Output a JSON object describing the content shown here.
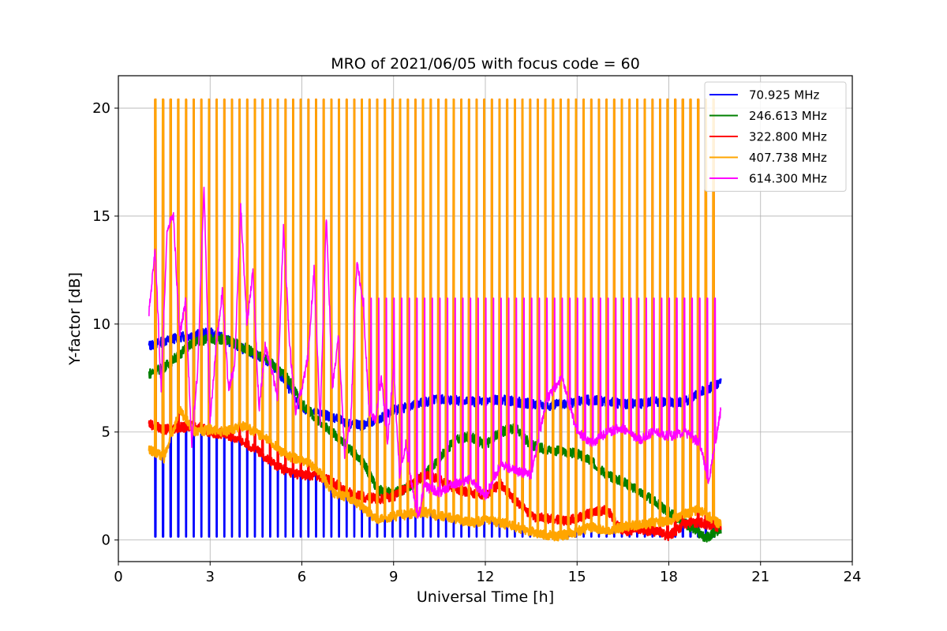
{
  "chart_data": {
    "type": "line",
    "title": "MRO of 2021/06/05 with focus code = 60",
    "xlabel": "Universal Time [h]",
    "ylabel": "Y-factor [dB]",
    "xlim": [
      0,
      24
    ],
    "ylim": [
      -1,
      21.5
    ],
    "xticks": [
      0,
      3,
      6,
      9,
      12,
      15,
      18,
      21,
      24
    ],
    "xtick_labels": [
      "0",
      "3",
      "6",
      "9",
      "12",
      "15",
      "18",
      "21",
      "24"
    ],
    "yticks": [
      0,
      5,
      10,
      15,
      20
    ],
    "ytick_labels": [
      "0",
      "5",
      "10",
      "15",
      "20"
    ],
    "grid": true,
    "legend_position": "top-right",
    "series": [
      {
        "name": " 70.925 MHz",
        "color": "#0000ff",
        "x": [
          1.0,
          1.5,
          2.0,
          2.5,
          3.0,
          3.5,
          4.0,
          4.5,
          5.0,
          5.5,
          6.0,
          6.5,
          7.0,
          7.5,
          8.0,
          8.5,
          9.0,
          9.5,
          10.0,
          10.5,
          11.0,
          11.5,
          12.0,
          12.5,
          13.0,
          13.5,
          14.0,
          14.5,
          15.0,
          15.5,
          16.0,
          16.5,
          17.0,
          17.5,
          18.0,
          18.5,
          19.0,
          19.7
        ],
        "values": [
          9.0,
          9.2,
          9.4,
          9.5,
          9.6,
          9.3,
          8.9,
          8.6,
          8.2,
          7.2,
          6.1,
          5.9,
          5.7,
          5.4,
          5.3,
          5.6,
          6.0,
          6.2,
          6.4,
          6.5,
          6.5,
          6.4,
          6.4,
          6.5,
          6.4,
          6.3,
          6.2,
          6.3,
          6.4,
          6.5,
          6.4,
          6.3,
          6.3,
          6.4,
          6.4,
          6.4,
          6.8,
          7.3
        ],
        "pulse_low": 0.15,
        "pulse_from": 1.2,
        "pulse_to": 19.6
      },
      {
        "name": "246.613 MHz",
        "color": "#008000",
        "x": [
          1.0,
          1.5,
          2.0,
          2.5,
          3.0,
          3.5,
          4.0,
          4.5,
          5.0,
          5.5,
          6.0,
          6.5,
          7.0,
          7.5,
          8.0,
          8.5,
          9.0,
          9.5,
          10.0,
          10.5,
          11.0,
          11.5,
          12.0,
          12.5,
          13.0,
          13.5,
          14.0,
          14.5,
          15.0,
          15.5,
          16.0,
          16.5,
          17.0,
          17.5,
          18.0,
          18.5,
          19.0,
          19.2,
          19.7
        ],
        "values": [
          7.7,
          8.0,
          8.6,
          9.2,
          9.3,
          9.3,
          9.0,
          8.6,
          8.2,
          7.6,
          6.3,
          5.6,
          5.0,
          4.3,
          3.6,
          2.3,
          2.2,
          2.4,
          3.0,
          3.8,
          4.6,
          4.8,
          4.4,
          5.0,
          5.2,
          4.4,
          4.2,
          4.1,
          4.0,
          3.6,
          3.0,
          2.7,
          2.3,
          1.8,
          1.3,
          0.8,
          0.3,
          0.1,
          0.5
        ]
      },
      {
        "name": "322.800 MHz",
        "color": "#ff0000",
        "x": [
          1.0,
          1.5,
          2.0,
          2.5,
          3.0,
          3.5,
          4.0,
          4.5,
          5.0,
          5.5,
          6.0,
          6.5,
          7.0,
          7.5,
          8.0,
          8.5,
          9.0,
          9.5,
          10.0,
          10.5,
          11.0,
          11.5,
          12.0,
          12.5,
          13.0,
          13.5,
          14.0,
          14.5,
          15.0,
          15.5,
          16.0,
          16.5,
          17.0,
          17.5,
          18.0,
          18.5,
          19.0,
          19.7
        ],
        "values": [
          5.4,
          5.1,
          5.2,
          5.3,
          5.0,
          4.9,
          4.6,
          4.2,
          3.6,
          3.2,
          3.0,
          3.0,
          2.7,
          2.2,
          2.0,
          1.9,
          2.0,
          2.5,
          3.0,
          2.8,
          2.4,
          2.2,
          2.1,
          2.6,
          1.8,
          1.1,
          1.0,
          0.9,
          1.0,
          1.3,
          1.4,
          0.4,
          0.5,
          0.4,
          0.2,
          0.7,
          0.8,
          0.6
        ],
        "pulse_high": 20.4,
        "pulse_from": 1.2,
        "pulse_to": 19.6
      },
      {
        "name": "407.738 MHz",
        "color": "#ffa500",
        "x": [
          1.0,
          1.5,
          2.0,
          2.5,
          3.0,
          3.5,
          4.0,
          4.5,
          5.0,
          5.5,
          6.0,
          6.5,
          7.0,
          7.5,
          8.0,
          8.5,
          9.0,
          9.5,
          10.0,
          10.5,
          11.0,
          11.5,
          12.0,
          12.5,
          13.0,
          13.5,
          14.0,
          14.5,
          15.0,
          15.5,
          16.0,
          16.5,
          17.0,
          17.5,
          18.0,
          18.5,
          19.0,
          19.7
        ],
        "values": [
          4.2,
          3.8,
          6.0,
          5.0,
          5.1,
          5.0,
          5.3,
          5.0,
          4.5,
          3.9,
          3.7,
          3.3,
          2.2,
          2.0,
          1.5,
          0.9,
          1.1,
          1.2,
          1.3,
          1.1,
          1.0,
          0.8,
          0.9,
          0.8,
          0.6,
          0.4,
          0.2,
          0.2,
          0.4,
          0.6,
          0.4,
          0.6,
          0.7,
          0.8,
          0.9,
          1.2,
          1.4,
          0.7
        ],
        "pulse_high": 20.4,
        "pulse_from": 1.2,
        "pulse_to": 19.6
      },
      {
        "name": "614.300 MHz",
        "color": "#ff00ff",
        "x": [
          1.0,
          1.2,
          1.4,
          1.6,
          1.8,
          2.0,
          2.2,
          2.4,
          2.6,
          2.8,
          3.0,
          3.2,
          3.4,
          3.6,
          3.8,
          4.0,
          4.2,
          4.4,
          4.6,
          4.8,
          5.0,
          5.2,
          5.4,
          5.6,
          5.8,
          6.0,
          6.2,
          6.4,
          6.6,
          6.8,
          7.0,
          7.2,
          7.4,
          7.6,
          7.8,
          8.0,
          8.2,
          8.4,
          8.6,
          8.8,
          9.0,
          9.2,
          9.4,
          9.6,
          9.8,
          10.0,
          10.5,
          11.0,
          11.5,
          12.0,
          12.5,
          13.0,
          13.5,
          14.0,
          14.5,
          15.0,
          15.5,
          16.0,
          16.5,
          17.0,
          17.5,
          18.0,
          18.5,
          19.0,
          19.3,
          19.7
        ],
        "values": [
          10.5,
          13.5,
          7.0,
          14.5,
          15.0,
          9.5,
          11.0,
          4.5,
          8.0,
          16.5,
          5.5,
          9.0,
          11.5,
          7.0,
          8.0,
          15.5,
          10.0,
          12.5,
          6.0,
          9.0,
          8.0,
          6.5,
          14.5,
          9.0,
          6.0,
          7.0,
          8.5,
          12.5,
          5.5,
          15.0,
          7.0,
          9.5,
          4.0,
          5.5,
          13.0,
          11.0,
          6.0,
          5.5,
          7.5,
          4.5,
          8.0,
          3.0,
          4.5,
          2.5,
          1.0,
          2.5,
          2.2,
          2.6,
          2.8,
          2.0,
          3.5,
          3.2,
          3.0,
          6.5,
          7.5,
          5.0,
          4.5,
          5.0,
          5.2,
          4.6,
          5.0,
          4.8,
          5.0,
          4.5,
          2.7,
          6.0
        ],
        "pulse_high": 11.2,
        "pulse_from": 8.0,
        "pulse_to": 19.6
      }
    ]
  }
}
